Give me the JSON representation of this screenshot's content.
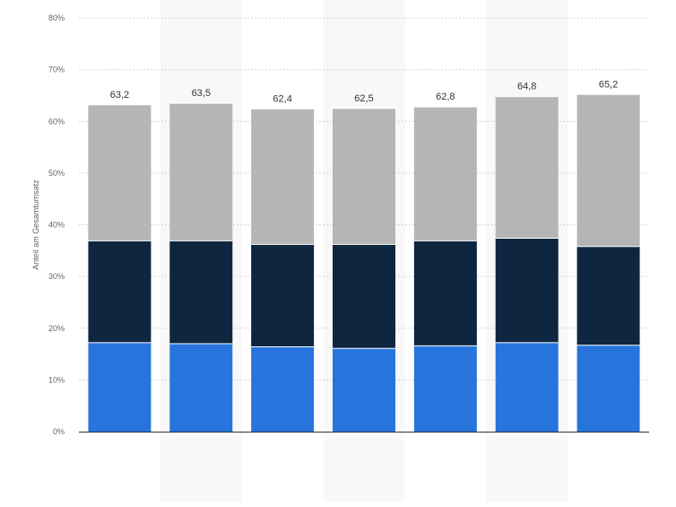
{
  "chart_data": {
    "type": "bar",
    "stacked": true,
    "categories": [
      "",
      "",
      "",
      "",
      "",
      "",
      ""
    ],
    "series": [
      {
        "values": [
          17.2,
          17.0,
          16.4,
          16.1,
          16.6,
          17.2,
          16.7
        ],
        "color": "#2775dc"
      },
      {
        "values": [
          19.7,
          19.9,
          19.8,
          20.1,
          20.3,
          20.2,
          19.1
        ],
        "color": "#0f2640"
      },
      {
        "values": [
          26.3,
          26.6,
          26.2,
          26.3,
          25.9,
          27.4,
          29.4
        ],
        "color": "#b5b5b5"
      }
    ],
    "totals": [
      "63,2",
      "63,5",
      "62,4",
      "62,5",
      "62,8",
      "64,8",
      "65,2"
    ],
    "title": "",
    "xlabel": "",
    "ylabel": "Anteil am Gesamtumsatz",
    "ylim": [
      0,
      80
    ],
    "yticks": [
      "0%",
      "10%",
      "20%",
      "30%",
      "40%",
      "50%",
      "60%",
      "70%",
      "80%"
    ],
    "grid": true,
    "alternating_band_color": "#f8f8f8"
  }
}
